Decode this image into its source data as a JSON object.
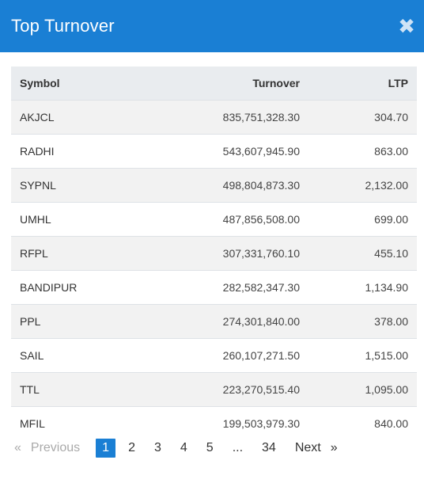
{
  "modal": {
    "title": "Top Turnover",
    "close_glyph": "✖"
  },
  "table": {
    "headers": [
      "Symbol",
      "Turnover",
      "LTP"
    ],
    "rows": [
      {
        "symbol": "AKJCL",
        "turnover": "835,751,328.30",
        "ltp": "304.70"
      },
      {
        "symbol": "RADHI",
        "turnover": "543,607,945.90",
        "ltp": "863.00"
      },
      {
        "symbol": "SYPNL",
        "turnover": "498,804,873.30",
        "ltp": "2,132.00"
      },
      {
        "symbol": "UMHL",
        "turnover": "487,856,508.00",
        "ltp": "699.00"
      },
      {
        "symbol": "RFPL",
        "turnover": "307,331,760.10",
        "ltp": "455.10"
      },
      {
        "symbol": "BANDIPUR",
        "turnover": "282,582,347.30",
        "ltp": "1,134.90"
      },
      {
        "symbol": "PPL",
        "turnover": "274,301,840.00",
        "ltp": "378.00"
      },
      {
        "symbol": "SAIL",
        "turnover": "260,107,271.50",
        "ltp": "1,515.00"
      },
      {
        "symbol": "TTL",
        "turnover": "223,270,515.40",
        "ltp": "1,095.00"
      },
      {
        "symbol": "MFIL",
        "turnover": "199,503,979.30",
        "ltp": "840.00"
      }
    ]
  },
  "pagination": {
    "prev_arrow": "«",
    "prev_label": "Previous",
    "pages": [
      "1",
      "2",
      "3",
      "4",
      "5"
    ],
    "ellipsis": "...",
    "last_page": "34",
    "next_label": "Next",
    "next_arrow": "»",
    "current_page": "1"
  },
  "colors": {
    "header_bg": "#1a7fd4",
    "active_page_bg": "#1a7fd4"
  }
}
